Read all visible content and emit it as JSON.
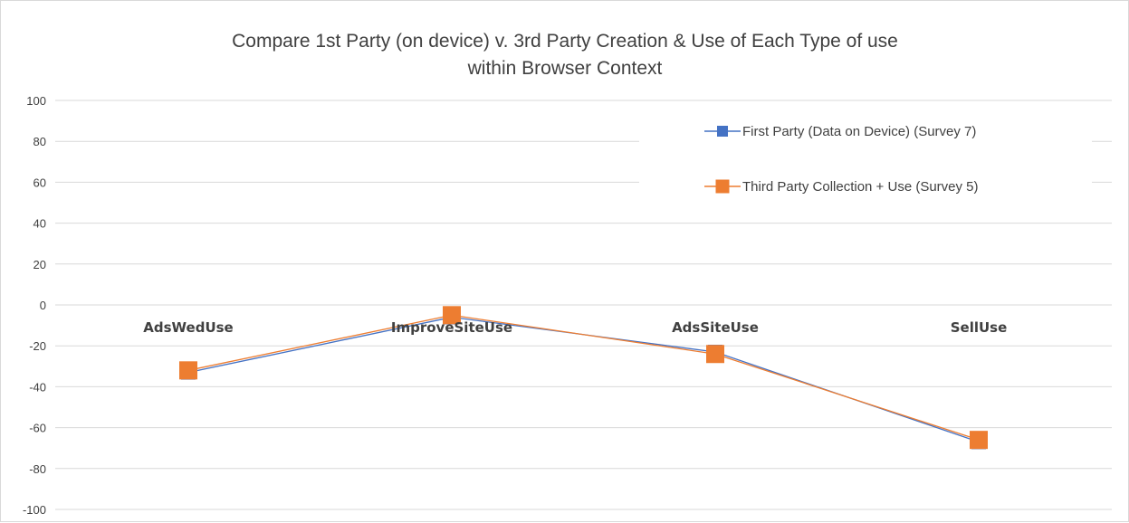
{
  "chart_data": {
    "type": "line",
    "title_lines": [
      "Compare 1st Party (on device) v. 3rd Party Creation & Use of Each Type of use",
      "within Browser Context"
    ],
    "categories": [
      "AdsWedUse",
      "ImproveSiteUse",
      "AdsSiteUse",
      "SellUse"
    ],
    "y_ticks": [
      "100",
      "80",
      "60",
      "40",
      "20",
      "0",
      "-20",
      "-40",
      "-60",
      "-80",
      "-100"
    ],
    "ylim": [
      -100,
      100
    ],
    "grid": true,
    "legend_position": "top-right",
    "series": [
      {
        "name": "First Party (Data on Device) (Survey 7)",
        "color": "#4472c4",
        "values": [
          -33,
          -6,
          -23,
          -67
        ]
      },
      {
        "name": "Third Party Collection + Use (Survey 5)",
        "color": "#ed7d31",
        "values": [
          -32,
          -5,
          -24,
          -66
        ]
      }
    ]
  }
}
